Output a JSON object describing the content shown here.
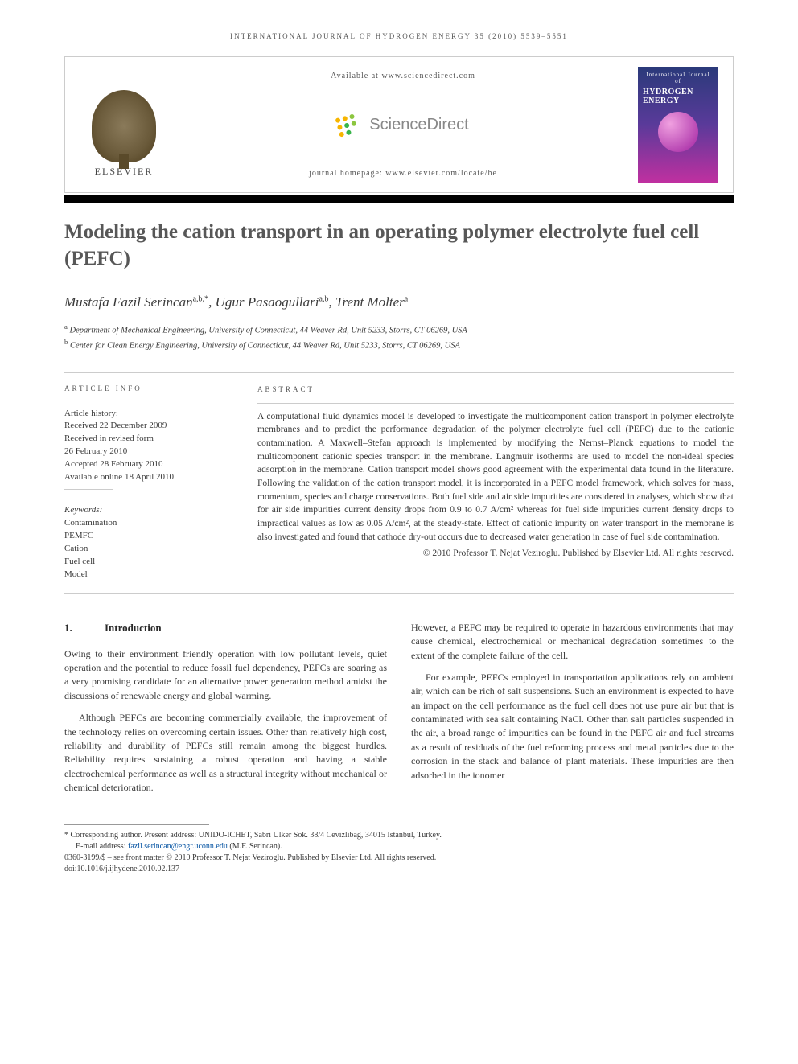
{
  "running_header": "INTERNATIONAL JOURNAL OF HYDROGEN ENERGY 35 (2010) 5539–5551",
  "header_box": {
    "available_at": "Available at www.sciencedirect.com",
    "sciencedirect": "ScienceDirect",
    "journal_homepage": "journal homepage: www.elsevier.com/locate/he",
    "elsevier": "ELSEVIER",
    "cover_small": "International Journal of",
    "cover_big": "HYDROGEN ENERGY",
    "sd_dot_colors": [
      "#f7b500",
      "#f7b500",
      "#8cc63f",
      "#f7b500",
      "#39b54a",
      "#8cc63f",
      "#f7b500",
      "#39b54a"
    ]
  },
  "title": "Modeling the cation transport in an operating polymer electrolyte fuel cell (PEFC)",
  "authors_html": "Mustafa Fazil Serincan",
  "author_sup1": "a,b,*",
  "author2": ", Ugur Pasaogullari",
  "author_sup2": "a,b",
  "author3": ", Trent Molter",
  "author_sup3": "a",
  "affiliations": {
    "a": "Department of Mechanical Engineering, University of Connecticut, 44 Weaver Rd, Unit 5233, Storrs, CT 06269, USA",
    "b": "Center for Clean Energy Engineering, University of Connecticut, 44 Weaver Rd, Unit 5233, Storrs, CT 06269, USA"
  },
  "article_info_label": "ARTICLE INFO",
  "abstract_label": "ABSTRACT",
  "history": {
    "heading": "Article history:",
    "received": "Received 22 December 2009",
    "revised1": "Received in revised form",
    "revised2": "26 February 2010",
    "accepted": "Accepted 28 February 2010",
    "online": "Available online 18 April 2010"
  },
  "keywords_heading": "Keywords:",
  "keywords": [
    "Contamination",
    "PEMFC",
    "Cation",
    "Fuel cell",
    "Model"
  ],
  "abstract": "A computational fluid dynamics model is developed to investigate the multicomponent cation transport in polymer electrolyte membranes and to predict the performance degradation of the polymer electrolyte fuel cell (PEFC) due to the cationic contamination. A Maxwell–Stefan approach is implemented by modifying the Nernst–Planck equations to model the multicomponent cationic species transport in the membrane. Langmuir isotherms are used to model the non-ideal species adsorption in the membrane. Cation transport model shows good agreement with the experimental data found in the literature. Following the validation of the cation transport model, it is incorporated in a PEFC model framework, which solves for mass, momentum, species and charge conservations. Both fuel side and air side impurities are considered in analyses, which show that for air side impurities current density drops from 0.9 to 0.7 A/cm² whereas for fuel side impurities current density drops to impractical values as low as 0.05 A/cm², at the steady-state. Effect of cationic impurity on water transport in the membrane is also investigated and found that cathode dry-out occurs due to decreased water generation in case of fuel side contamination.",
  "copyright": "© 2010 Professor T. Nejat Veziroglu. Published by Elsevier Ltd. All rights reserved.",
  "section1": {
    "num": "1.",
    "title": "Introduction"
  },
  "body": {
    "p1": "Owing to their environment friendly operation with low pollutant levels, quiet operation and the potential to reduce fossil fuel dependency, PEFCs are soaring as a very promising candidate for an alternative power generation method amidst the discussions of renewable energy and global warming.",
    "p2": "Although PEFCs are becoming commercially available, the improvement of the technology relies on overcoming certain issues. Other than relatively high cost, reliability and durability of PEFCs still remain among the biggest hurdles. Reliability requires sustaining a robust operation and having a stable electrochemical performance as well as a structural integrity without mechanical or chemical deterioration.",
    "p3": "However, a PEFC may be required to operate in hazardous environments that may cause chemical, electrochemical or mechanical degradation sometimes to the extent of the complete failure of the cell.",
    "p4": "For example, PEFCs employed in transportation applications rely on ambient air, which can be rich of salt suspensions. Such an environment is expected to have an impact on the cell performance as the fuel cell does not use pure air but that is contaminated with sea salt containing NaCl. Other than salt particles suspended in the air, a broad range of impurities can be found in the PEFC air and fuel streams as a result of residuals of the fuel reforming process and metal particles due to the corrosion in the stack and balance of plant materials. These impurities are then adsorbed in the ionomer"
  },
  "footnotes": {
    "corresp": "* Corresponding author. Present address: UNIDO-ICHET, Sabri Ulker Sok. 38/4 Cevizlibag, 34015 Istanbul, Turkey.",
    "email_label": "E-mail address: ",
    "email": "fazil.serincan@engr.uconn.edu",
    "email_who": " (M.F. Serincan).",
    "issn": "0360-3199/$ – see front matter © 2010 Professor T. Nejat Veziroglu. Published by Elsevier Ltd. All rights reserved.",
    "doi": "doi:10.1016/j.ijhydene.2010.02.137"
  },
  "colors": {
    "text": "#3a3a3a",
    "title": "#575757",
    "rule": "#cccccc",
    "link": "#0050a0"
  }
}
